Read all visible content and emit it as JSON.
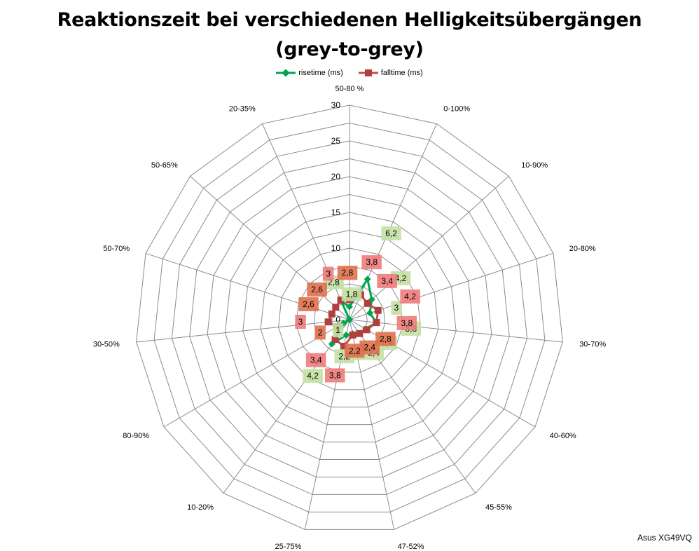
{
  "chart_data": {
    "type": "radar",
    "title_line1": "Reaktionszeit bei verschiedenen Helligkeitsübergängen",
    "title_line2": "(grey-to-grey)",
    "categories": [
      "50-80 %",
      "0-100%",
      "10-90%",
      "20-80%",
      "30-70%",
      "40-60%",
      "45-55%",
      "47-52%",
      "25-75%",
      "10-20%",
      "80-90%",
      "30-50%",
      "50-70%",
      "50-65%",
      "20-35%"
    ],
    "rlim": [
      0,
      30
    ],
    "ticks": [
      "0",
      "5",
      "10",
      "15",
      "20",
      "25",
      "30"
    ],
    "tick_values": [
      0,
      5,
      10,
      15,
      20,
      25,
      30
    ],
    "grid": true,
    "legend_position": "top",
    "series": [
      {
        "name": "risetime (ms)",
        "color": "#00a550",
        "label_bg": "#c4e0a4",
        "values": [
          1.8,
          6.2,
          4.2,
          3,
          3.8,
          2.6,
          2.4,
          2,
          2.2,
          4.2,
          1,
          0,
          0,
          0,
          2.8
        ],
        "labels": [
          "1,8",
          "6,2",
          "4,2",
          "3",
          "3,8",
          "2,6",
          "2,4",
          "2",
          "2,2",
          "4,2",
          "1",
          "",
          "",
          "",
          "2,8"
        ]
      },
      {
        "name": "falltime (ms)",
        "color": "#c0504d",
        "marker_color": "#b0403d",
        "label_bg": "#ef7b7b",
        "dark_label_bg": "#e0704e",
        "values": [
          2.8,
          3.8,
          3.4,
          4.2,
          3.8,
          2.8,
          2.4,
          2.2,
          3.8,
          3.4,
          2,
          3,
          2.6,
          2.6,
          3
        ],
        "labels": [
          "2,8",
          "3,8",
          "3,4",
          "4,2",
          "3,8",
          "2,8",
          "2,4",
          "2,2",
          "3,8",
          "3,4",
          "2",
          "3",
          "2,6",
          "2,6",
          "3"
        ]
      }
    ],
    "source_note": "Asus XG49VQ"
  }
}
